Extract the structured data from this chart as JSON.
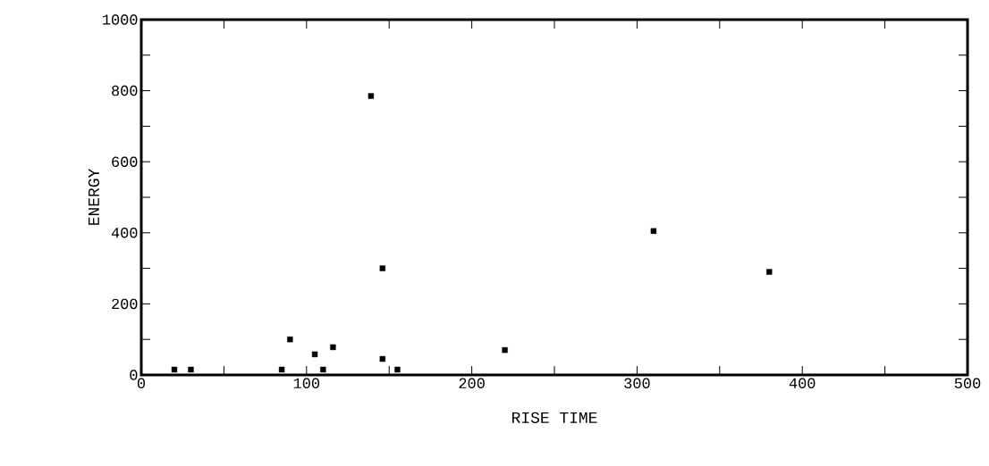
{
  "chart_data": {
    "type": "scatter",
    "xlabel": "RISE TIME",
    "ylabel": "ENERGY",
    "x": [
      20,
      30,
      85,
      90,
      105,
      110,
      116,
      139,
      146,
      146,
      155,
      220,
      310,
      380
    ],
    "values": [
      15,
      15,
      15,
      100,
      58,
      15,
      78,
      785,
      300,
      45,
      15,
      70,
      405,
      290
    ],
    "color": "#000000",
    "marker": "square",
    "xlim": [
      0,
      500
    ],
    "ylim": [
      0,
      1000
    ],
    "xticks": [
      0,
      {
        "value": 50,
        "label": null
      },
      100,
      {
        "value": 150,
        "label": null
      },
      200,
      {
        "value": 250,
        "label": null
      },
      300,
      {
        "value": 350,
        "label": null
      },
      400,
      {
        "value": 450,
        "label": null
      },
      500
    ],
    "yticks": [
      0,
      {
        "value": 100,
        "label": null
      },
      200,
      {
        "value": 300,
        "label": null
      },
      400,
      {
        "value": 500,
        "label": null
      },
      600,
      {
        "value": 700,
        "label": null
      },
      800,
      {
        "value": 900,
        "label": null
      },
      1000
    ],
    "grid": false
  }
}
